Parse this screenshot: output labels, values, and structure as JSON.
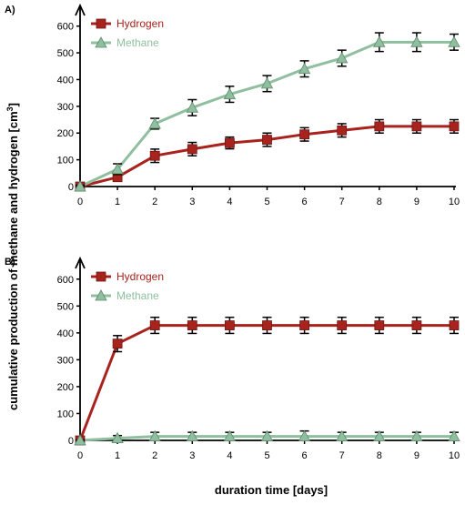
{
  "figure": {
    "xlabel": "duration time [days]",
    "ylabel_main": "cumulative production of methane and hydrogen [cm",
    "ylabel_sup": "3",
    "ylabel_end": "]"
  },
  "colors": {
    "hydrogen": "#a8231d",
    "methane": "#8fbf9f",
    "errorbars": "#000000",
    "axes": "#000000"
  },
  "chart_data": [
    {
      "type": "line",
      "panel_label": "A)",
      "x": [
        0,
        1,
        2,
        3,
        4,
        5,
        6,
        7,
        8,
        9,
        10
      ],
      "xticks": [
        "0",
        "1",
        "2",
        "3",
        "4",
        "5",
        "6",
        "7",
        "8",
        "9",
        "10"
      ],
      "ylim": [
        0,
        650
      ],
      "yticks": [
        "0",
        "100",
        "200",
        "300",
        "400",
        "500",
        "600"
      ],
      "ytick_values": [
        0,
        100,
        200,
        300,
        400,
        500,
        600
      ],
      "grid": false,
      "legend_position": "top-left",
      "series": [
        {
          "name": "Hydrogen",
          "marker": "square",
          "color_key": "hydrogen",
          "values": [
            0,
            35,
            115,
            140,
            163,
            175,
            195,
            210,
            225,
            225,
            225
          ],
          "errors": [
            5,
            15,
            25,
            25,
            22,
            25,
            25,
            25,
            25,
            25,
            25
          ]
        },
        {
          "name": "Methane",
          "marker": "triangle",
          "color_key": "methane",
          "values": [
            0,
            65,
            235,
            295,
            345,
            385,
            440,
            480,
            540,
            540,
            540
          ],
          "errors": [
            5,
            20,
            20,
            30,
            30,
            30,
            30,
            30,
            35,
            35,
            30
          ]
        }
      ]
    },
    {
      "type": "line",
      "panel_label": "B)",
      "x": [
        0,
        1,
        2,
        3,
        4,
        5,
        6,
        7,
        8,
        9,
        10
      ],
      "xticks": [
        "0",
        "1",
        "2",
        "3",
        "4",
        "5",
        "6",
        "7",
        "8",
        "9",
        "10"
      ],
      "ylim": [
        0,
        650
      ],
      "yticks": [
        "0",
        "100",
        "200",
        "300",
        "400",
        "500",
        "600"
      ],
      "ytick_values": [
        0,
        100,
        200,
        300,
        400,
        500,
        600
      ],
      "grid": false,
      "legend_position": "top-left",
      "series": [
        {
          "name": "Hydrogen",
          "marker": "square",
          "color_key": "hydrogen",
          "values": [
            0,
            360,
            428,
            428,
            428,
            428,
            428,
            428,
            428,
            428,
            428
          ],
          "errors": [
            5,
            30,
            30,
            30,
            30,
            30,
            30,
            30,
            30,
            30,
            30
          ]
        },
        {
          "name": "Methane",
          "marker": "triangle",
          "color_key": "methane",
          "values": [
            0,
            8,
            15,
            15,
            15,
            15,
            15,
            15,
            15,
            15,
            15
          ],
          "errors": [
            2,
            10,
            15,
            15,
            15,
            15,
            20,
            15,
            15,
            15,
            15
          ]
        }
      ]
    }
  ]
}
